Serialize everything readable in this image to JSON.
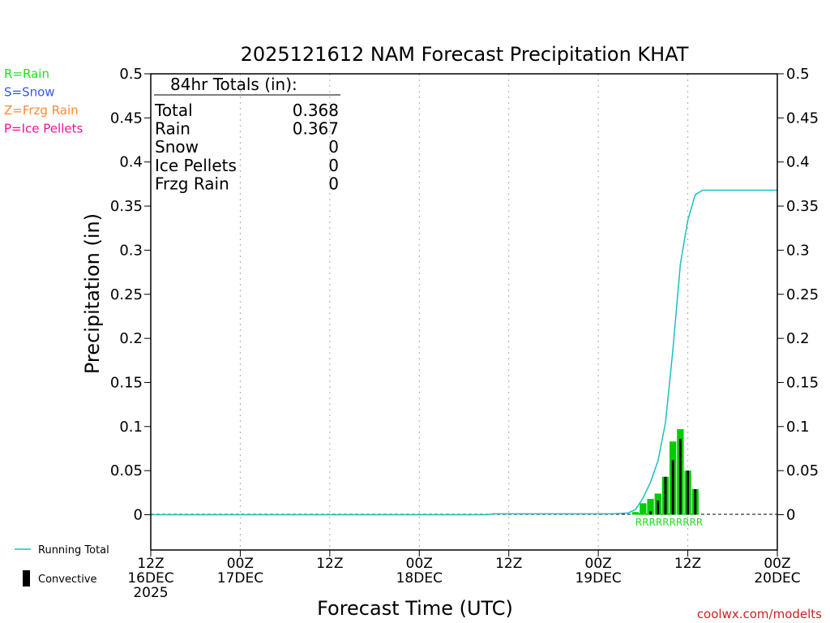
{
  "chart_data": {
    "type": "bar",
    "title": "2025121612 NAM Forecast Precipitation KHAT",
    "xlabel": "Forecast Time (UTC)",
    "ylabel": "Precipitation (in)",
    "ylim": [
      -0.04,
      0.5
    ],
    "y_ticks": [
      0,
      0.05,
      0.1,
      0.15,
      0.2,
      0.25,
      0.3,
      0.35,
      0.4,
      0.45,
      0.5
    ],
    "y_tick_labels": [
      "0",
      "0.05",
      "0.1",
      "0.15",
      "0.2",
      "0.25",
      "0.3",
      "0.35",
      "0.4",
      "0.45",
      "0.5"
    ],
    "xlim_hours": [
      0,
      84
    ],
    "x_ticks": [
      {
        "hour": 0,
        "lines": [
          "12Z",
          "16DEC",
          "2025"
        ]
      },
      {
        "hour": 12,
        "lines": [
          "00Z",
          "17DEC"
        ]
      },
      {
        "hour": 24,
        "lines": [
          "12Z"
        ]
      },
      {
        "hour": 36,
        "lines": [
          "00Z",
          "18DEC"
        ]
      },
      {
        "hour": 48,
        "lines": [
          "12Z"
        ]
      },
      {
        "hour": 60,
        "lines": [
          "00Z",
          "19DEC"
        ]
      },
      {
        "hour": 72,
        "lines": [
          "12Z"
        ]
      },
      {
        "hour": 84,
        "lines": [
          "00Z",
          "20DEC"
        ]
      }
    ],
    "grid_hours": [
      12,
      24,
      36,
      48,
      60,
      72
    ],
    "legend_top": [
      {
        "label": "R=Rain",
        "color": "#22dd22"
      },
      {
        "label": "S=Snow",
        "color": "#3355ee"
      },
      {
        "label": "Z=Frzg Rain",
        "color": "#ff8833"
      },
      {
        "label": "P=Ice Pellets",
        "color": "#ee1199"
      }
    ],
    "legend_bottom": [
      {
        "label": "Running Total",
        "color": "#19c0c0"
      },
      {
        "label": "Convective",
        "color": "#000000"
      }
    ],
    "totals_box": {
      "heading": "84hr Totals (in):",
      "rows": [
        {
          "label": "Total",
          "value": "0.368"
        },
        {
          "label": "Rain",
          "value": "0.367"
        },
        {
          "label": "Snow",
          "value": "0"
        },
        {
          "label": "Ice Pellets",
          "value": "0"
        },
        {
          "label": "Frzg Rain",
          "value": "0"
        }
      ]
    },
    "series": [
      {
        "name": "Precipitation (Rain)",
        "color": "#00cc00",
        "hours": [
          65,
          66,
          67,
          68,
          69,
          70,
          71,
          72,
          73
        ],
        "values": [
          0.003,
          0.013,
          0.018,
          0.024,
          0.043,
          0.083,
          0.097,
          0.05,
          0.029
        ]
      },
      {
        "name": "Convective",
        "color": "#000000",
        "hours": [
          67,
          68,
          69,
          70,
          71,
          72,
          73
        ],
        "values": [
          0.004,
          0.016,
          0.043,
          0.062,
          0.086,
          0.05,
          0.029
        ]
      },
      {
        "name": "Running Total",
        "color": "#19c0c0",
        "hours": [
          0,
          45,
          46,
          62,
          64,
          65,
          66,
          67,
          68,
          69,
          70,
          71,
          72,
          73,
          74,
          84
        ],
        "values": [
          0,
          0,
          0.001,
          0.001,
          0.002,
          0.006,
          0.019,
          0.037,
          0.061,
          0.104,
          0.187,
          0.284,
          0.334,
          0.363,
          0.368,
          0.368
        ]
      }
    ],
    "precip_type_label": {
      "text": "RRRRRRRRRR",
      "color": "#22dd22",
      "hour_center": 69.5
    },
    "watermark": "coolwx.com/modelts",
    "watermark_color": "#cc2222"
  }
}
